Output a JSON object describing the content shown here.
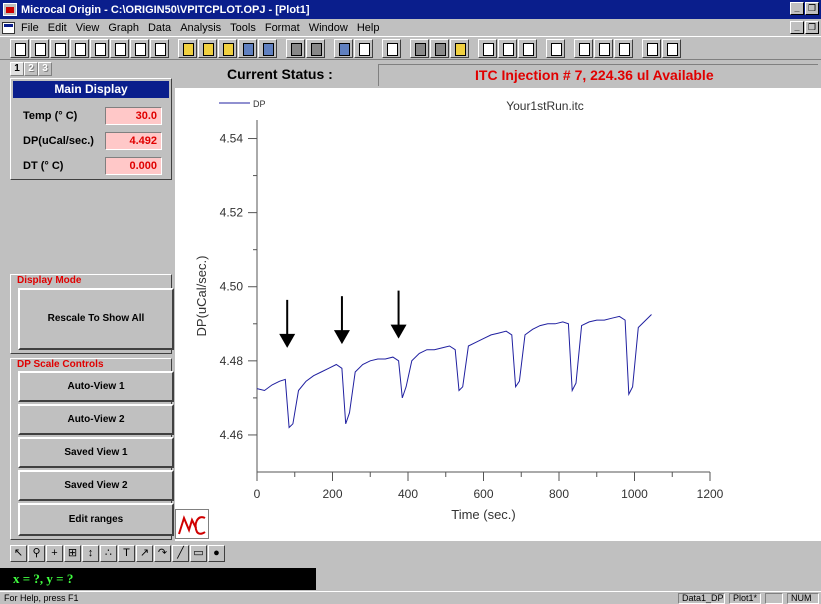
{
  "window": {
    "title": "Microcal Origin - C:\\ORIGIN50\\VPITCPLOT.OPJ - [Plot1]"
  },
  "menu": [
    "File",
    "Edit",
    "View",
    "Graph",
    "Data",
    "Analysis",
    "Tools",
    "Format",
    "Window",
    "Help"
  ],
  "page_tabs": [
    "1",
    "2",
    "3"
  ],
  "status": {
    "label": "Current Status :",
    "message": "ITC Injection # 7, 224.36 ul Available"
  },
  "main_display": {
    "title": "Main Display",
    "fields": [
      {
        "label": "Temp (° C)",
        "value": "30.0"
      },
      {
        "label": "DP(uCal/sec.)",
        "value": "4.492"
      },
      {
        "label": "DT (° C)",
        "value": "0.000"
      }
    ]
  },
  "display_mode": {
    "title": "Display Mode",
    "button": "Rescale To Show All"
  },
  "dp_scale": {
    "title": "DP Scale Controls",
    "buttons": [
      "Auto-View 1",
      "Auto-View 2",
      "Saved View 1",
      "Saved View 2",
      "Edit ranges"
    ]
  },
  "coords": "x = ?, y = ?",
  "statusbar": {
    "help": "For Help, press F1",
    "cells": [
      "Data1_DP",
      "Plot1*",
      "",
      "NUM"
    ]
  },
  "colors": {
    "accent": "#0a1e8c",
    "alert": "#e00000",
    "series": "#2020a0"
  },
  "chart_data": {
    "type": "line",
    "title": "Your1stRun.itc",
    "xlabel": "Time (sec.)",
    "ylabel": "DP(uCal/sec.)",
    "xlim": [
      0,
      1200
    ],
    "ylim": [
      4.45,
      4.545
    ],
    "xticks": [
      0,
      200,
      400,
      600,
      800,
      1000,
      1200
    ],
    "yticks": [
      4.46,
      4.48,
      4.5,
      4.52,
      4.54
    ],
    "legend": "top-left",
    "grid": false,
    "series": [
      {
        "name": "DP",
        "x": [
          0,
          20,
          40,
          60,
          75,
          85,
          95,
          110,
          130,
          150,
          170,
          190,
          210,
          225,
          235,
          245,
          260,
          280,
          300,
          320,
          340,
          360,
          375,
          385,
          395,
          410,
          430,
          450,
          470,
          490,
          510,
          525,
          535,
          545,
          560,
          580,
          600,
          620,
          640,
          660,
          675,
          685,
          695,
          710,
          730,
          750,
          770,
          790,
          810,
          825,
          835,
          845,
          860,
          880,
          900,
          920,
          940,
          960,
          975,
          985,
          995,
          1010,
          1030,
          1045
        ],
        "y": [
          4.4725,
          4.472,
          4.4735,
          4.4745,
          4.475,
          4.462,
          4.463,
          4.472,
          4.4745,
          4.476,
          4.477,
          4.478,
          4.479,
          4.478,
          4.463,
          4.466,
          4.477,
          4.479,
          4.48,
          4.4805,
          4.4805,
          4.481,
          4.48,
          4.47,
          4.473,
          4.48,
          4.482,
          4.483,
          4.483,
          4.4835,
          4.484,
          4.483,
          4.472,
          4.473,
          4.484,
          4.485,
          4.486,
          4.487,
          4.4875,
          4.488,
          4.487,
          4.473,
          4.4745,
          4.487,
          4.4885,
          4.4895,
          4.49,
          4.49,
          4.4905,
          4.49,
          4.472,
          4.474,
          4.4895,
          4.4905,
          4.491,
          4.491,
          4.4915,
          4.492,
          4.491,
          4.471,
          4.473,
          4.489,
          4.491,
          4.4925
        ]
      }
    ],
    "annotations": [
      {
        "type": "arrow",
        "x": 80,
        "y": 4.4835
      },
      {
        "type": "arrow",
        "x": 225,
        "y": 4.4845
      },
      {
        "type": "arrow",
        "x": 375,
        "y": 4.486
      }
    ]
  }
}
